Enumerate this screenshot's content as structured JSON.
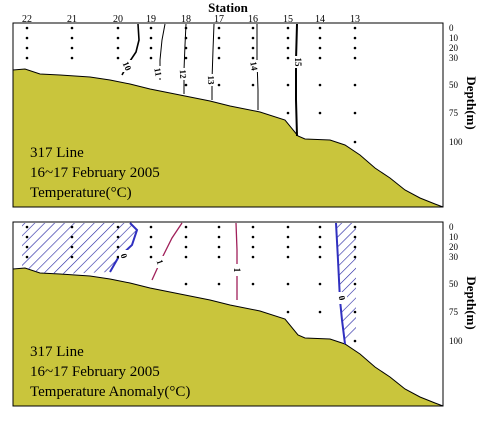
{
  "chart_data": [
    {
      "type": "contour",
      "title": "Station",
      "xlabel": "Station",
      "ylabel": "Depth(m)",
      "stations": [
        "22",
        "21",
        "20",
        "19",
        "18",
        "17",
        "16",
        "15",
        "14",
        "13"
      ],
      "depth_ticks": [
        "0",
        "10",
        "20",
        "30",
        "50",
        "75",
        "100"
      ],
      "annotation_lines": [
        "317 Line",
        "16~17 February 2005",
        "Temperature(°C)"
      ],
      "contour_labels": [
        "10",
        "11",
        "12",
        "13",
        "14",
        "15"
      ],
      "contours": [
        {
          "label": "10",
          "values": [
            [
              0,
              "19"
            ],
            [
              10,
              "19"
            ],
            [
              30,
              "19.6"
            ]
          ]
        },
        {
          "label": "11",
          "values": [
            [
              0,
              "18.6"
            ],
            [
              30,
              "18.5"
            ],
            [
              45,
              "18.3"
            ]
          ]
        },
        {
          "label": "12",
          "values": [
            [
              0,
              "18"
            ],
            [
              30,
              "17.9"
            ],
            [
              50,
              "17.8"
            ]
          ]
        },
        {
          "label": "13",
          "values": [
            [
              0,
              "17.2"
            ],
            [
              30,
              "17.1"
            ],
            [
              55,
              "17"
            ]
          ]
        },
        {
          "label": "14",
          "values": [
            [
              0,
              "16.3"
            ],
            [
              30,
              "16.2"
            ],
            [
              60,
              "16.1"
            ]
          ]
        },
        {
          "label": "15",
          "values": [
            [
              0,
              "14.5"
            ],
            [
              30,
              "14.5"
            ],
            [
              100,
              "14.6"
            ]
          ]
        }
      ],
      "colors": {
        "land": "#c9c53c",
        "contour": "#000000"
      }
    },
    {
      "type": "contour",
      "xlabel": "Station",
      "ylabel": "Depth(m)",
      "stations": [
        "22",
        "21",
        "20",
        "19",
        "18",
        "17",
        "16",
        "15",
        "14",
        "13"
      ],
      "depth_ticks": [
        "0",
        "10",
        "20",
        "30",
        "50",
        "75",
        "100"
      ],
      "annotation_lines": [
        "317 Line",
        "16~17 February 2005",
        "Temperature Anomaly(°C)"
      ],
      "contour_labels": [
        "0",
        "1",
        "1",
        "0"
      ],
      "negative_regions": [
        "stations 22–20 (0–45 m)",
        "stations 14–13 (0–105 m)"
      ],
      "colors": {
        "land": "#c9c53c",
        "negative_hatch": "#2020a0",
        "zero_contour": "#3030c0",
        "positive_contour": "#a0205a"
      }
    }
  ]
}
